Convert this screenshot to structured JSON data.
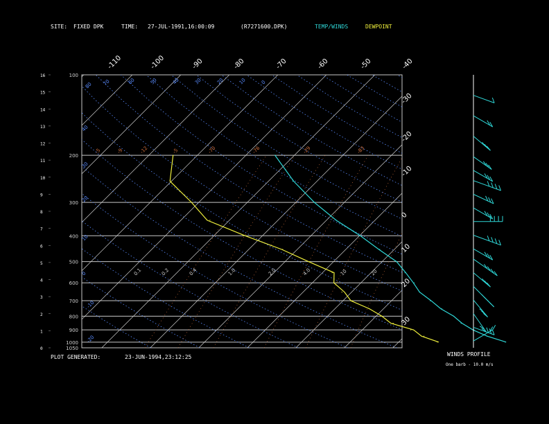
{
  "header": {
    "site_label": "SITE:",
    "site_value": "FIXED  DPK",
    "time_label": "TIME:",
    "time_value": "27-JUL-1991,16:00:09",
    "file_value": "(R7271600.DPK)",
    "legend_temp": "TEMP/WINDS",
    "legend_dew": "DEWPOINT"
  },
  "footer": {
    "generated_label": "PLOT GENERATED:",
    "generated_value": "23-JUN-1994,23:12:25"
  },
  "wind_panel": {
    "title": "WINDS PROFILE",
    "note": "One barb - 10.0 m/s"
  },
  "colors": {
    "background": "#000000",
    "temp": "#2fd8d8",
    "dewpoint": "#f0f03c",
    "grid": "#c8c8c8",
    "isotherm": "#cfcfcf",
    "dry_adiabat": "#5a8cff",
    "moist_adiabat": "#d2703c",
    "mixing_ratio": "#d2703c",
    "wind": "#2fd8d8"
  },
  "chart_data": {
    "type": "line",
    "subtype": "skew-T log-P",
    "pressure_levels": [
      "100",
      "200",
      "300",
      "400",
      "500",
      "600",
      "700",
      "800",
      "900",
      "1000",
      "1050"
    ],
    "height_ticks": [
      "16",
      "15",
      "14",
      "13",
      "12",
      "11",
      "10",
      "9",
      "8",
      "7",
      "6",
      "5",
      "4",
      "3",
      "2",
      "1",
      "0"
    ],
    "height_range_km": [
      0,
      16
    ],
    "skewed_temp_labels": [
      "-110",
      "-100",
      "-90",
      "-80",
      "-70",
      "-60",
      "-50",
      "-40"
    ],
    "right_temp_labels": [
      "-30",
      "-20",
      "-10",
      "0",
      "10",
      "20",
      "30"
    ],
    "dry_adiabat_labels": [
      "80",
      "70",
      "60",
      "50",
      "40",
      "30",
      "20",
      "10",
      "0"
    ],
    "mixing_ratio_top_labels": [
      "-5",
      "-9",
      "-12",
      "-5",
      "-70",
      "-76",
      "-29",
      "-83"
    ],
    "mixing_ratio_low_labels": [
      "0.1",
      "0.2",
      "0.4",
      "1.0",
      "2.0",
      "4.0",
      "10",
      "20"
    ],
    "series": [
      {
        "name": "TEMP/WINDS",
        "pressure": [
          200,
          250,
          300,
          350,
          400,
          450,
          500,
          550,
          600,
          650,
          700,
          750,
          800,
          850,
          900,
          950,
          1000
        ],
        "temperature": [
          -54,
          -45,
          -36,
          -28,
          -20,
          -13,
          -7,
          -3,
          1,
          4,
          8,
          12,
          16,
          19,
          23,
          27,
          32
        ]
      },
      {
        "name": "DEWPOINT",
        "pressure": [
          200,
          250,
          300,
          350,
          400,
          450,
          500,
          550,
          600,
          650,
          700,
          750,
          800,
          850,
          900,
          950,
          1000
        ],
        "temperature": [
          -75,
          -70,
          -62,
          -54,
          -44,
          -33,
          -25,
          -18,
          -15,
          -12,
          -8,
          -3,
          1,
          5,
          10,
          14,
          18
        ]
      }
    ],
    "winds": [
      {
        "height_km": 14.8,
        "speed_ms": 10,
        "dir_deg": 250
      },
      {
        "height_km": 13.6,
        "speed_ms": 20,
        "dir_deg": 240
      },
      {
        "height_km": 12.4,
        "speed_ms": 30,
        "dir_deg": 230
      },
      {
        "height_km": 11.2,
        "speed_ms": 30,
        "dir_deg": 235
      },
      {
        "height_km": 10.4,
        "speed_ms": 25,
        "dir_deg": 240
      },
      {
        "height_km": 9.8,
        "speed_ms": 40,
        "dir_deg": 250
      },
      {
        "height_km": 9.0,
        "speed_ms": 30,
        "dir_deg": 245
      },
      {
        "height_km": 8.2,
        "speed_ms": 30,
        "dir_deg": 240
      },
      {
        "height_km": 7.4,
        "speed_ms": 50,
        "dir_deg": 270
      },
      {
        "height_km": 6.6,
        "speed_ms": 40,
        "dir_deg": 250
      },
      {
        "height_km": 5.8,
        "speed_ms": 30,
        "dir_deg": 240
      },
      {
        "height_km": 5.2,
        "speed_ms": 40,
        "dir_deg": 235
      },
      {
        "height_km": 4.4,
        "speed_ms": 30,
        "dir_deg": 230
      },
      {
        "height_km": 3.6,
        "speed_ms": 40,
        "dir_deg": 225
      },
      {
        "height_km": 2.8,
        "speed_ms": 30,
        "dir_deg": 220
      },
      {
        "height_km": 2.0,
        "speed_ms": 20,
        "dir_deg": 215
      },
      {
        "height_km": 1.2,
        "speed_ms": 30,
        "dir_deg": 250
      },
      {
        "height_km": 0.4,
        "speed_ms": 20,
        "dir_deg": 300
      }
    ]
  }
}
